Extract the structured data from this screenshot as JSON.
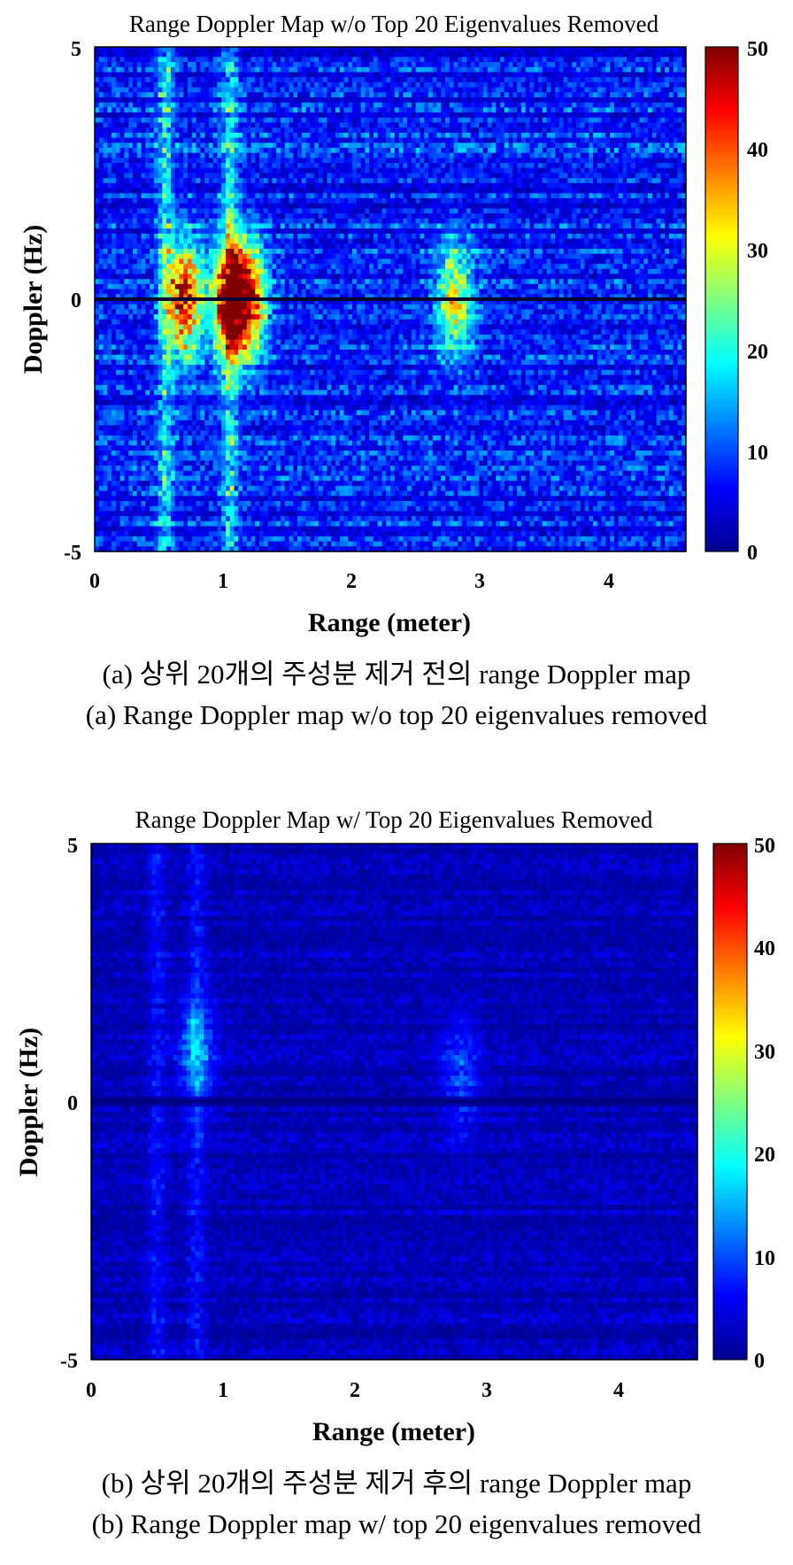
{
  "chart_data": [
    {
      "type": "heatmap",
      "title": "Range Doppler Map w/o Top 20 Eigenvalues Removed",
      "xlabel": "Range (meter)",
      "ylabel": "Doppler (Hz)",
      "xlim": [
        0,
        4.6
      ],
      "ylim": [
        -5,
        5
      ],
      "xticks": [
        "0",
        "1",
        "2",
        "3",
        "4"
      ],
      "yticks": [
        "-5",
        "0",
        "5"
      ],
      "colorbar": {
        "range": [
          0,
          50
        ],
        "ticks": [
          "0",
          "10",
          "20",
          "30",
          "40",
          "50"
        ],
        "colormap": "jet"
      },
      "features": {
        "background_level": 8,
        "zero_doppler_line": true,
        "hotspots": [
          {
            "range": 0.7,
            "doppler": 0,
            "level": 45
          },
          {
            "range": 1.05,
            "doppler": 0,
            "level": 50
          },
          {
            "range": 1.2,
            "doppler": 0,
            "level": 40
          },
          {
            "range": 2.8,
            "doppler": 0,
            "level": 28
          }
        ],
        "range_bands": [
          0.55,
          1.05
        ]
      }
    },
    {
      "type": "heatmap",
      "title": "Range Doppler Map w/ Top 20 Eigenvalues Removed",
      "xlabel": "Range (meter)",
      "ylabel": "Doppler (Hz)",
      "xlim": [
        0,
        4.6
      ],
      "ylim": [
        -5,
        5
      ],
      "xticks": [
        "0",
        "1",
        "2",
        "3",
        "4"
      ],
      "yticks": [
        "-5",
        "0",
        "5"
      ],
      "colorbar": {
        "range": [
          0,
          50
        ],
        "ticks": [
          "0",
          "10",
          "20",
          "30",
          "40",
          "50"
        ],
        "colormap": "jet"
      },
      "features": {
        "background_level": 3,
        "zero_doppler_line": true,
        "hotspots": [
          {
            "range": 0.8,
            "doppler": 1,
            "level": 12
          },
          {
            "range": 2.8,
            "doppler": 0.5,
            "level": 9
          }
        ],
        "range_bands": [
          0.5,
          0.8
        ]
      }
    }
  ],
  "captions": {
    "a_korean": "(a) 상위 20개의 주성분 제거 전의 range Doppler map",
    "a_english": "(a) Range Doppler map w/o top 20 eigenvalues removed",
    "b_korean": "(b) 상위 20개의 주성분 제거 후의 range Doppler map",
    "b_english": "(b) Range Doppler map w/ top 20 eigenvalues removed"
  }
}
